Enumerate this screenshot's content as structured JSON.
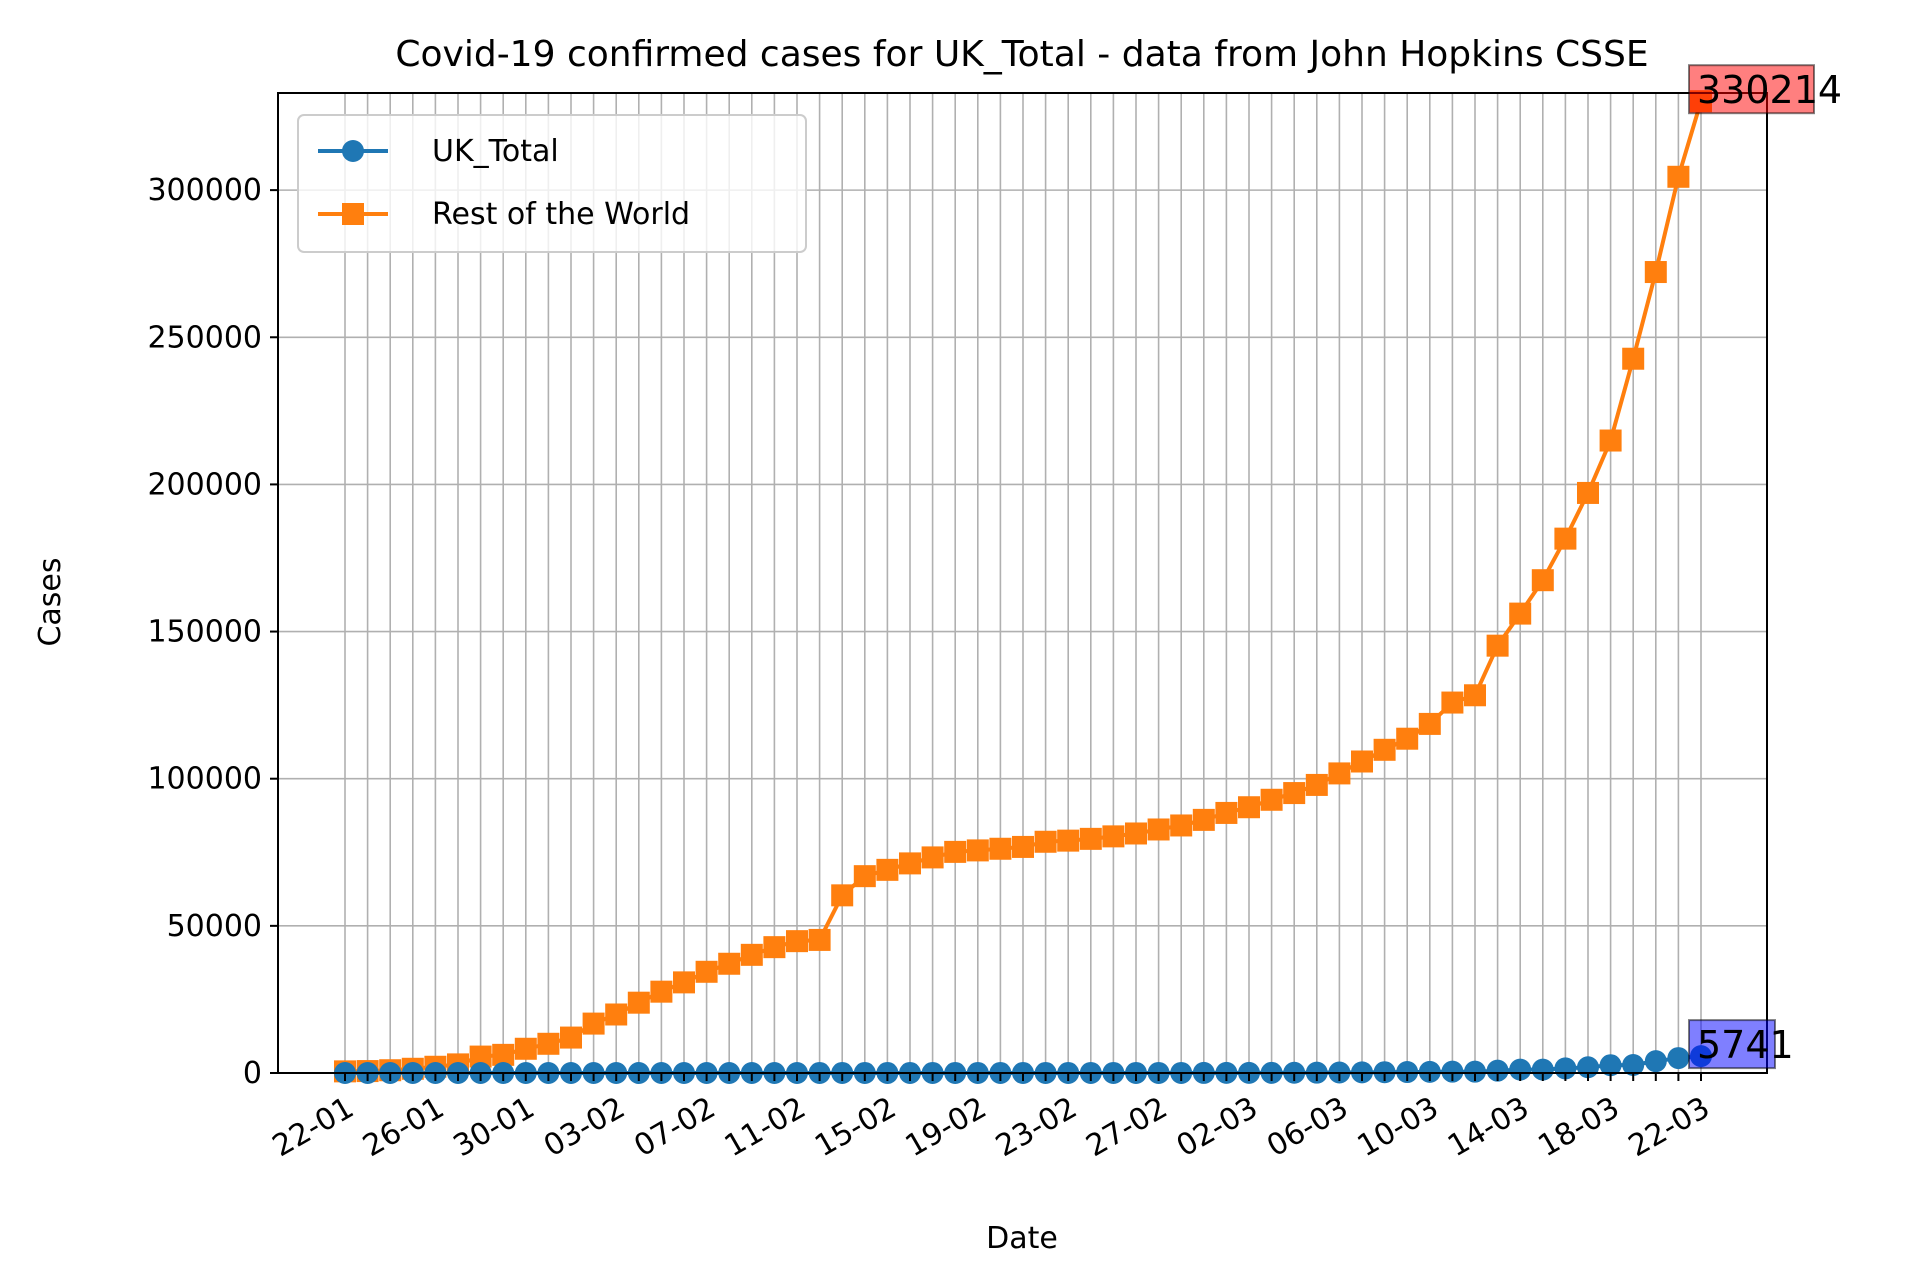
{
  "chart_data": {
    "type": "line",
    "title": "Covid-19 confirmed cases for UK_Total - data from John Hopkins CSSE",
    "xlabel": "Date",
    "ylabel": "Cases",
    "ylim": [
      0,
      333000
    ],
    "yticks": [
      0,
      50000,
      100000,
      150000,
      200000,
      250000,
      300000
    ],
    "ytick_labels": [
      "0",
      "50000",
      "100000",
      "150000",
      "200000",
      "250000",
      "300000"
    ],
    "xtick_labels": [
      "22-01",
      "26-01",
      "30-01",
      "03-02",
      "07-02",
      "11-02",
      "15-02",
      "19-02",
      "23-02",
      "27-02",
      "02-03",
      "06-03",
      "10-03",
      "14-03",
      "18-03",
      "22-03"
    ],
    "grid": true,
    "legend_position": "upper-left",
    "x": [
      "22-01",
      "23-01",
      "24-01",
      "25-01",
      "26-01",
      "27-01",
      "28-01",
      "29-01",
      "30-01",
      "31-01",
      "01-02",
      "02-02",
      "03-02",
      "04-02",
      "05-02",
      "06-02",
      "07-02",
      "08-02",
      "09-02",
      "10-02",
      "11-02",
      "12-02",
      "13-02",
      "14-02",
      "15-02",
      "16-02",
      "17-02",
      "18-02",
      "19-02",
      "20-02",
      "21-02",
      "22-02",
      "23-02",
      "24-02",
      "25-02",
      "26-02",
      "27-02",
      "28-02",
      "29-02",
      "01-03",
      "02-03",
      "03-03",
      "04-03",
      "05-03",
      "06-03",
      "07-03",
      "08-03",
      "09-03",
      "10-03",
      "11-03",
      "12-03",
      "13-03",
      "14-03",
      "15-03",
      "16-03",
      "17-03",
      "18-03",
      "19-03",
      "20-03",
      "21-03",
      "22-03"
    ],
    "series": [
      {
        "name": "UK_Total",
        "color": "#1f77b4",
        "marker": "circle",
        "values": [
          0,
          0,
          0,
          0,
          0,
          0,
          0,
          0,
          0,
          2,
          2,
          2,
          2,
          2,
          2,
          2,
          3,
          3,
          3,
          8,
          8,
          9,
          9,
          9,
          9,
          9,
          9,
          9,
          9,
          9,
          9,
          9,
          9,
          13,
          13,
          13,
          15,
          20,
          23,
          36,
          40,
          51,
          85,
          115,
          163,
          206,
          273,
          321,
          382,
          456,
          456,
          798,
          1140,
          1143,
          1551,
          1960,
          2642,
          2716,
          4014,
          5067,
          5741
        ]
      },
      {
        "name": "Rest of the World",
        "color": "#ff7f0e",
        "marker": "square",
        "values": [
          555,
          654,
          941,
          1434,
          2118,
          2927,
          5578,
          6166,
          8234,
          9925,
          12038,
          16787,
          19881,
          23892,
          27635,
          30794,
          34391,
          37120,
          40150,
          42762,
          44802,
          45221,
          60368,
          66885,
          69030,
          71224,
          73258,
          75136,
          75639,
          76197,
          76819,
          78572,
          78958,
          79561,
          80406,
          81388,
          82746,
          84112,
          86011,
          88369,
          90306,
          92840,
          95120,
          97886,
          101801,
          105847,
          109821,
          113590,
          118620,
          125875,
          128352,
          145205,
          156101,
          167454,
          181574,
          197102,
          214910,
          242708,
          272166,
          304528,
          330214
        ]
      }
    ],
    "annotations": [
      {
        "text": "330214",
        "series": "Rest of the World",
        "box_color": "#ff0000"
      },
      {
        "text": "5741",
        "series": "UK_Total",
        "box_color": "#0000ff"
      }
    ]
  }
}
